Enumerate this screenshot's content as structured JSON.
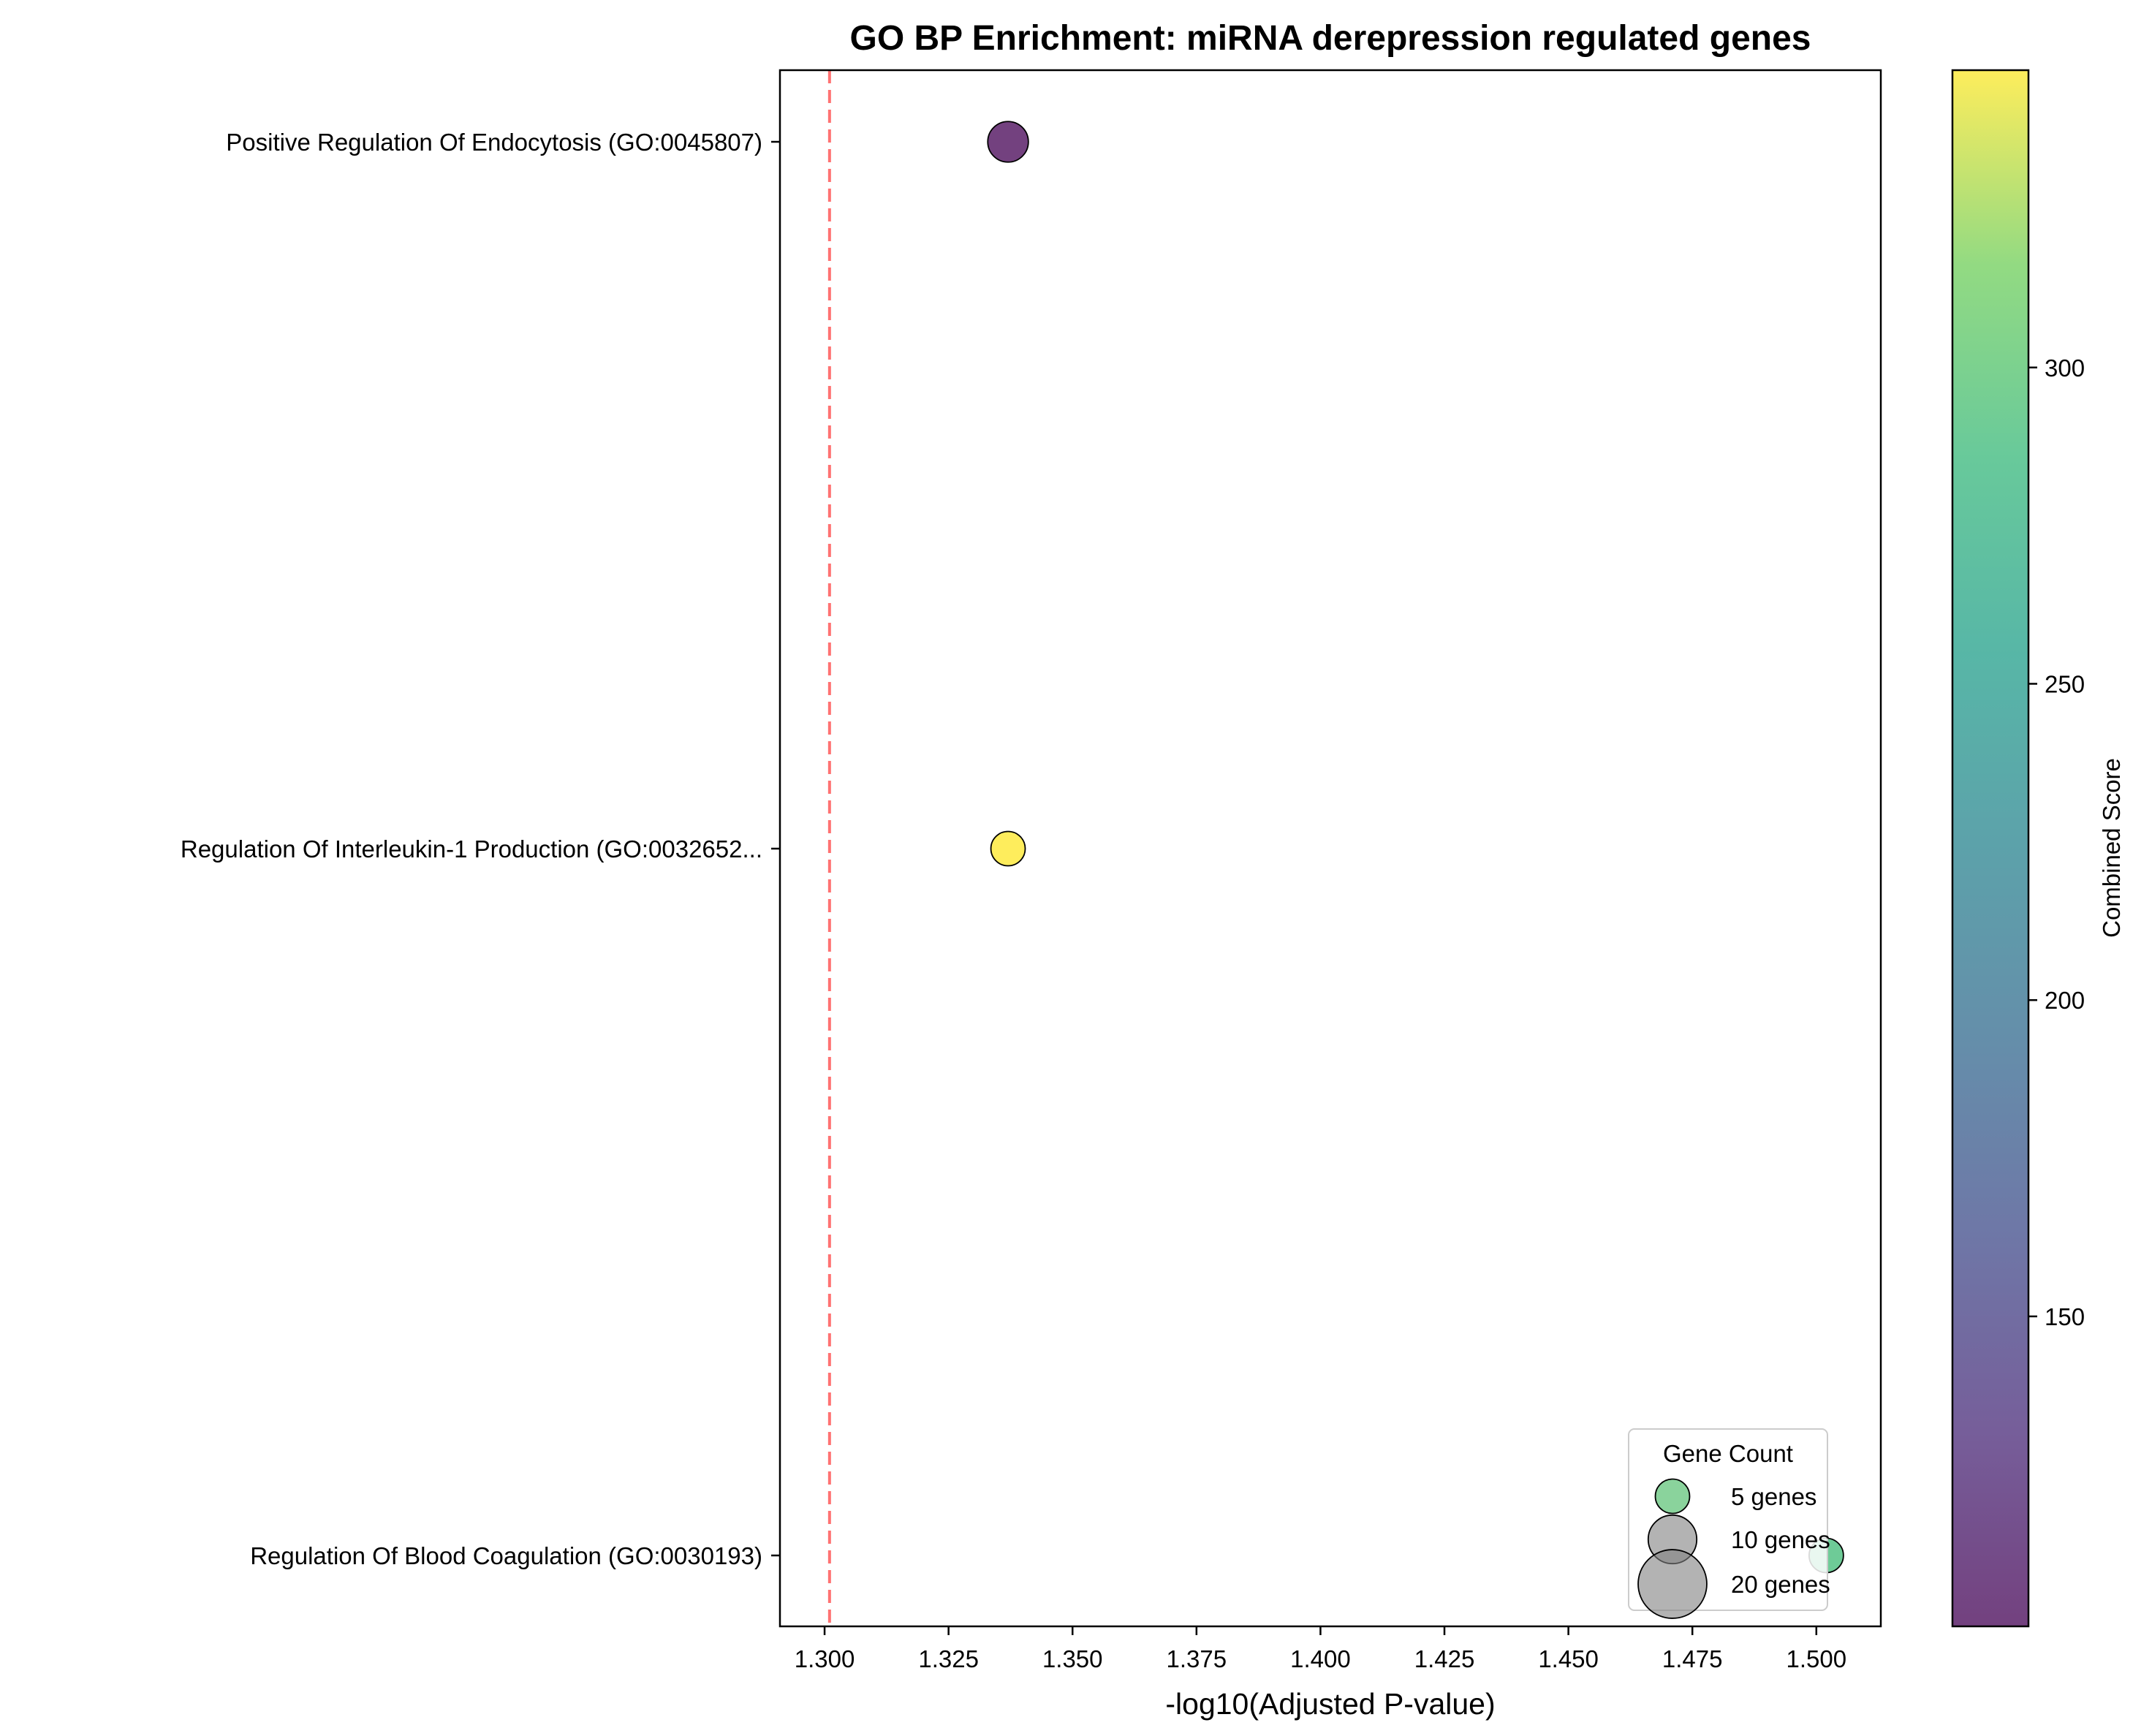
{
  "chart_data": {
    "type": "scatter",
    "title": "GO BP Enrichment: miRNA derepression regulated genes",
    "xlabel": "-log10(Adjusted P-value)",
    "ylabel": "",
    "xlim": [
      1.291,
      1.513
    ],
    "xticks": [
      1.3,
      1.325,
      1.35,
      1.375,
      1.4,
      1.425,
      1.45,
      1.475,
      1.5
    ],
    "xtick_labels": [
      "1.300",
      "1.325",
      "1.350",
      "1.375",
      "1.400",
      "1.425",
      "1.450",
      "1.475",
      "1.500"
    ],
    "categories": [
      "Positive Regulation Of Endocytosis (GO:0045807)",
      "Regulation Of Interleukin-1 Production (GO:0032652...",
      "Regulation Of Blood Coagulation (GO:0030193)"
    ],
    "points": [
      {
        "term": "Positive Regulation Of Endocytosis (GO:0045807)",
        "x": 1.337,
        "gene_count": 7,
        "combined_score": 101
      },
      {
        "term": "Regulation Of Interleukin-1 Production (GO:0032652...",
        "x": 1.337,
        "gene_count": 5,
        "combined_score": 347
      },
      {
        "term": "Regulation Of Blood Coagulation (GO:0030193)",
        "x": 1.502,
        "gene_count": 5,
        "combined_score": 290
      }
    ],
    "threshold_line": {
      "x": 1.301,
      "color": "#ff6b6b",
      "style": "dashed"
    },
    "colorbar": {
      "label": "Combined Score",
      "colormap": "viridis",
      "range": [
        101,
        347
      ],
      "ticks": [
        150,
        200,
        250,
        300
      ],
      "tick_labels": [
        "150",
        "200",
        "250",
        "300"
      ]
    },
    "legend": {
      "title": "Gene Count",
      "placement": "lower-right",
      "entries": [
        {
          "label": "5 genes",
          "gene_count": 5,
          "color": "#3cb55a"
        },
        {
          "label": "10 genes",
          "gene_count": 10,
          "color": "#808080"
        },
        {
          "label": "20 genes",
          "gene_count": 20,
          "color": "#808080"
        }
      ]
    },
    "grid": false
  }
}
